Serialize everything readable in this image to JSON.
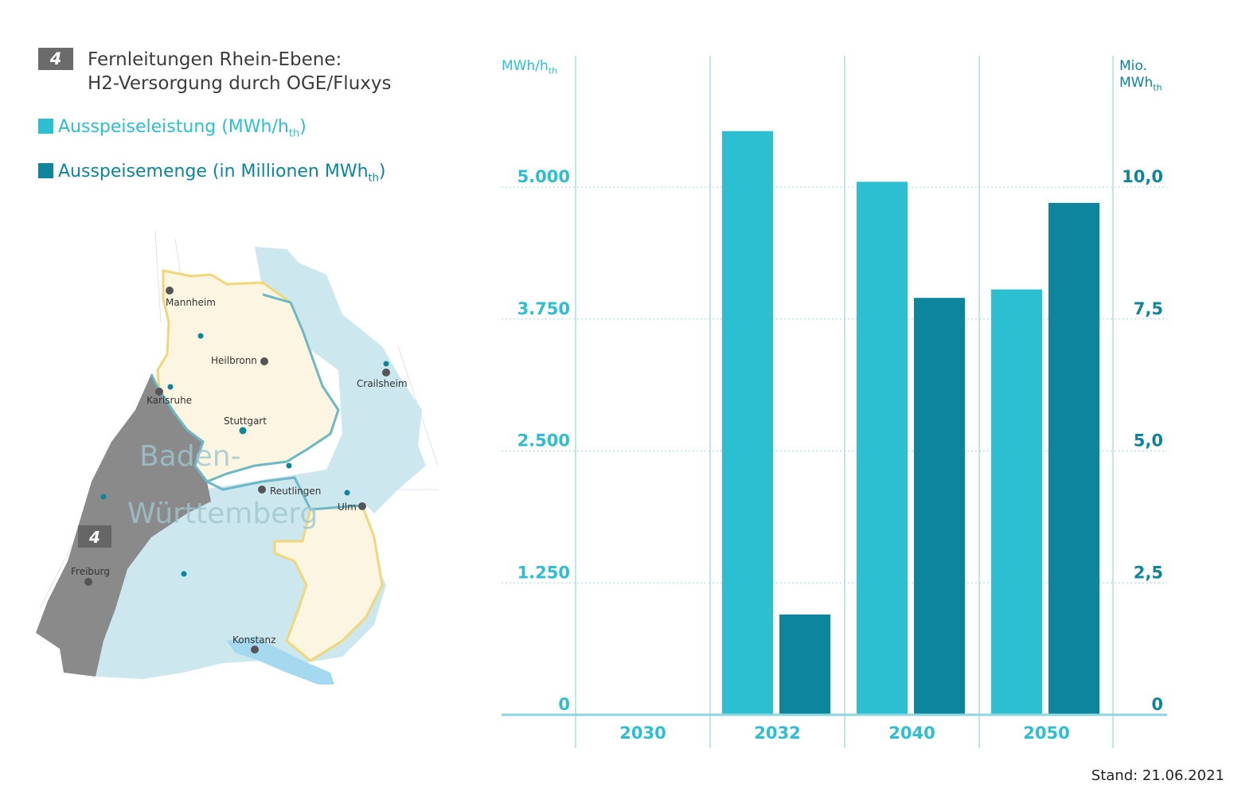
{
  "header": {
    "badge": "4",
    "title_line1": "Fernleitungen Rhein-Ebene:",
    "title_line2": "H2-Versorgung durch OGE/Fluxys"
  },
  "legend": [
    {
      "label": "Ausspeiseleistung (MWh/h",
      "sub": "th",
      "suffix": ")",
      "color": "#2bbfd1"
    },
    {
      "label": "Ausspeisemenge (in Millionen MWh",
      "sub": "th",
      "suffix": ")",
      "color": "#0d859d"
    }
  ],
  "map": {
    "region_label_1": "Baden-",
    "region_label_2": "Württemberg",
    "badge": "4",
    "cities": [
      "Mannheim",
      "Heilbronn",
      "Crailsheim",
      "Karlsruhe",
      "Stuttgart",
      "Reutlingen",
      "Ulm",
      "Freiburg",
      "Konstanz"
    ]
  },
  "units": {
    "left_main": "MWh/h",
    "left_sub": "th",
    "right_line1": "Mio.",
    "right_main": "MWh",
    "right_sub": "th"
  },
  "chart_data": {
    "type": "bar",
    "categories": [
      "2030",
      "2032",
      "2040",
      "2050"
    ],
    "series": [
      {
        "name": "Ausspeiseleistung (MWh/hth)",
        "axis": "left",
        "color": "#2bbfd1",
        "values": [
          0,
          5530,
          5050,
          4030
        ]
      },
      {
        "name": "Ausspeisemenge (in Millionen MWhth)",
        "axis": "right",
        "color": "#0d859d",
        "values": [
          0,
          1.9,
          7.9,
          9.7
        ]
      }
    ],
    "y_left": {
      "ticks": [
        "0",
        "1.250",
        "2.500",
        "3.750",
        "5.000"
      ],
      "tick_values": [
        0,
        1250,
        2500,
        3750,
        5000
      ],
      "lim": [
        0,
        6250
      ]
    },
    "y_right": {
      "ticks": [
        "0",
        "2,5",
        "5,0",
        "7,5",
        "10,0"
      ],
      "tick_values": [
        0,
        2.5,
        5,
        7.5,
        10
      ],
      "lim": [
        0,
        12.5
      ]
    },
    "grid": "dotted horizontal"
  },
  "footer": {
    "stand": "Stand: 21.06.2021"
  }
}
